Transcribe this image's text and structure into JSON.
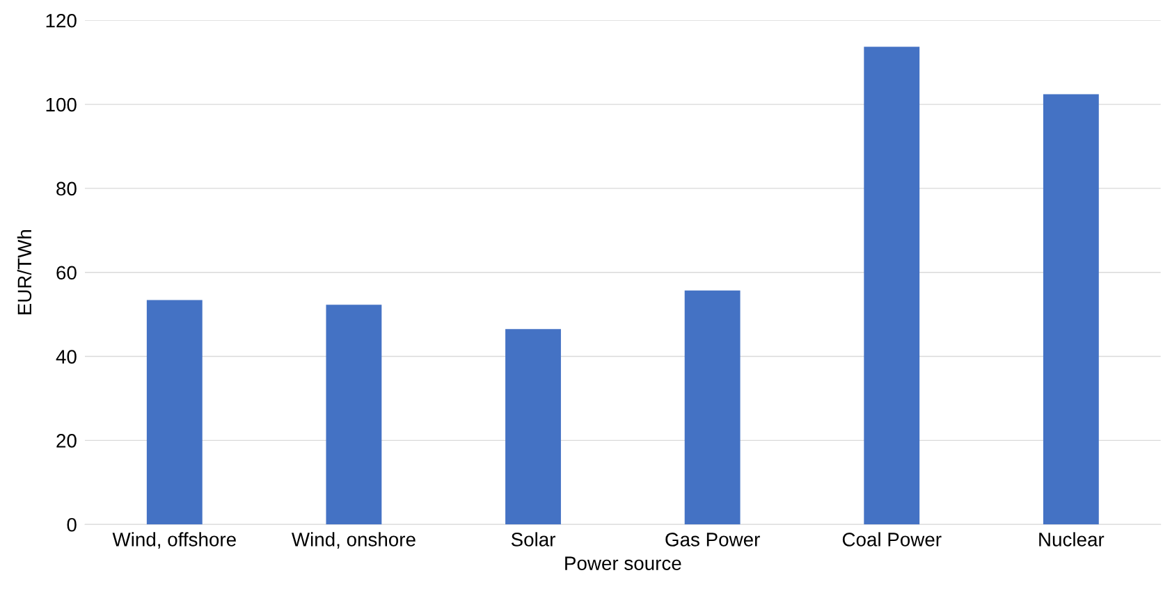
{
  "chart_data": {
    "type": "bar",
    "xlabel": "Power source",
    "ylabel": "EUR/TWh",
    "categories": [
      "Wind, offshore",
      "Wind, onshore",
      "Solar",
      "Gas Power",
      "Coal Power",
      "Nuclear"
    ],
    "values": [
      53.4,
      52.3,
      46.5,
      55.7,
      113.7,
      102.4
    ],
    "color": "#4472c4",
    "ylim": [
      0,
      120
    ],
    "yticks": [
      0,
      20,
      40,
      60,
      80,
      100,
      120
    ],
    "grid": "y"
  }
}
